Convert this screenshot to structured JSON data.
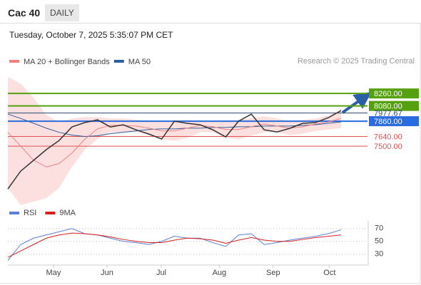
{
  "header": {
    "title": "Cac 40",
    "interval": "DAILY",
    "timestamp": "Tuesday, October 7, 2025 5:35:07 PM CET"
  },
  "chart_data": [
    {
      "type": "line",
      "credit": "Research © 2025 Trading Central",
      "xlim": [
        0,
        26
      ],
      "ylim": [
        6680,
        8580
      ],
      "series": [
        {
          "name": "Cac 40",
          "color": "#333333",
          "values": [
            6884,
            7140,
            7295,
            7450,
            7582,
            7777,
            7840,
            7880,
            7777,
            7808,
            7736,
            7675,
            7603,
            7860,
            7829,
            7808,
            7736,
            7634,
            7860,
            7962,
            7736,
            7705,
            7757,
            7829,
            7840,
            7910,
            8013
          ]
        },
        {
          "name": "MA 20 + Bollinger Bands",
          "color": "#f08080",
          "values": [
            7700,
            7500,
            7300,
            7200,
            7250,
            7400,
            7600,
            7750,
            7800,
            7800,
            7790,
            7760,
            7720,
            7720,
            7760,
            7800,
            7780,
            7740,
            7740,
            7780,
            7820,
            7790,
            7760,
            7780,
            7820,
            7850,
            7900
          ],
          "upper": [
            8500,
            8400,
            8200,
            7950,
            7850,
            7900,
            7920,
            7920,
            7900,
            7900,
            7880,
            7860,
            7850,
            7870,
            7880,
            7870,
            7860,
            7860,
            7880,
            7900,
            7930,
            7900,
            7860,
            7880,
            7900,
            7940,
            8020
          ],
          "lower": [
            6900,
            6650,
            6700,
            6750,
            6900,
            7200,
            7450,
            7600,
            7700,
            7700,
            7700,
            7660,
            7600,
            7580,
            7620,
            7700,
            7700,
            7620,
            7600,
            7650,
            7700,
            7700,
            7660,
            7680,
            7720,
            7740,
            7760
          ]
        },
        {
          "name": "MA 50",
          "color": "#2c5f9e",
          "values": [
            7962,
            7900,
            7830,
            7760,
            7700,
            7660,
            7640,
            7650,
            7680,
            7700,
            7720,
            7740,
            7750,
            7750,
            7760,
            7760,
            7770,
            7770,
            7780,
            7780,
            7790,
            7790,
            7790,
            7800,
            7810,
            7830,
            7850
          ]
        }
      ],
      "levels": [
        {
          "value": 8260,
          "label": "8260.00",
          "color": "#54a00f",
          "box": true
        },
        {
          "value": 8080,
          "label": "8080.00",
          "color": "#54a00f",
          "box": true
        },
        {
          "value": 7977.67,
          "label": "7977.67",
          "color": "#27486e",
          "box": false
        },
        {
          "value": 7860,
          "label": "7860.00",
          "color": "#2a6be0",
          "box": true
        },
        {
          "value": 7640,
          "label": "7640.00",
          "color": "#e05050",
          "box": false
        },
        {
          "value": 7500,
          "label": "7500.00",
          "color": "#e05050",
          "box": false
        }
      ]
    },
    {
      "type": "line",
      "xlim": [
        0,
        26
      ],
      "ylim": [
        13,
        82
      ],
      "xticks": [
        {
          "value": 3.56,
          "label": "May"
        },
        {
          "value": 7.74,
          "label": "Jun"
        },
        {
          "value": 11.97,
          "label": "Jul"
        },
        {
          "value": 16.5,
          "label": "Aug"
        },
        {
          "value": 20.7,
          "label": "Sep"
        },
        {
          "value": 25.1,
          "label": "Oct"
        }
      ],
      "yticks": [
        70,
        50,
        30
      ],
      "series": [
        {
          "name": "RSI",
          "color": "#5b7fd4",
          "values": [
            20,
            45,
            55,
            60,
            65,
            70,
            62,
            60,
            55,
            50,
            48,
            45,
            50,
            58,
            55,
            55,
            48,
            42,
            60,
            62,
            45,
            48,
            52,
            55,
            58,
            62,
            68
          ]
        },
        {
          "name": "9MA",
          "color": "#d62020",
          "values": [
            25,
            35,
            45,
            55,
            60,
            63,
            62,
            60,
            57,
            53,
            50,
            48,
            48,
            52,
            55,
            54,
            52,
            47,
            52,
            56,
            52,
            50,
            50,
            53,
            56,
            58,
            60
          ]
        }
      ]
    }
  ]
}
